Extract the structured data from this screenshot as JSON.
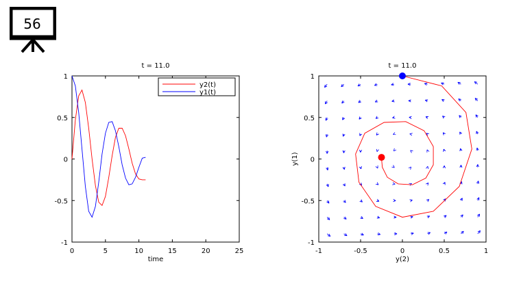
{
  "slide": {
    "number": "56",
    "icon": "presentation-board-icon"
  },
  "chart_data": [
    {
      "type": "line",
      "title": "t = 11.0",
      "xlabel": "time",
      "ylabel": "",
      "xlim": [
        0,
        25
      ],
      "ylim": [
        -1,
        1
      ],
      "xticks": [
        "0",
        "5",
        "10",
        "15",
        "20",
        "25"
      ],
      "yticks": [
        "1",
        "0.5",
        "0",
        "-0.5",
        "-1"
      ],
      "legend": {
        "placement": "top-right",
        "entries": [
          "y2(t)",
          "y1(t)"
        ]
      },
      "series": [
        {
          "name": "y2(t)",
          "color": "#ff0000",
          "x": [
            0,
            0.5,
            1,
            1.5,
            2,
            2.5,
            3,
            3.5,
            4,
            4.5,
            5,
            5.5,
            6,
            6.5,
            7,
            7.5,
            8,
            8.5,
            9,
            9.5,
            10,
            10.5,
            11
          ],
          "y": [
            0,
            0.47,
            0.76,
            0.83,
            0.68,
            0.37,
            0.0,
            -0.32,
            -0.52,
            -0.56,
            -0.45,
            -0.22,
            0.04,
            0.26,
            0.37,
            0.37,
            0.28,
            0.12,
            -0.05,
            -0.18,
            -0.24,
            -0.25,
            -0.25
          ]
        },
        {
          "name": "y1(t)",
          "color": "#0000ff",
          "x": [
            0,
            0.5,
            1,
            1.5,
            2,
            2.5,
            3,
            3.5,
            4,
            4.5,
            5,
            5.5,
            6,
            6.5,
            7,
            7.5,
            8,
            8.5,
            9,
            9.5,
            10,
            10.5,
            11
          ],
          "y": [
            1,
            0.88,
            0.56,
            0.12,
            -0.33,
            -0.63,
            -0.7,
            -0.57,
            -0.28,
            0.06,
            0.31,
            0.44,
            0.45,
            0.34,
            0.15,
            -0.07,
            -0.23,
            -0.31,
            -0.3,
            -0.22,
            -0.1,
            0.01,
            0.02
          ]
        }
      ]
    },
    {
      "type": "line",
      "title": "t = 11.0",
      "xlabel": "y(2)",
      "ylabel": "y(1)",
      "xlim": [
        -1,
        1
      ],
      "ylim": [
        -1,
        1
      ],
      "xticks": [
        "-1",
        "-0.5",
        "0",
        "0.5",
        "1"
      ],
      "yticks": [
        "1",
        "0.5",
        "0",
        "-0.5",
        "-1"
      ],
      "vector_field": {
        "color": "#0000ff",
        "grid": 10
      },
      "series": [
        {
          "name": "",
          "color": "#ff0000",
          "x": [
            0,
            0.47,
            0.76,
            0.83,
            0.68,
            0.37,
            0.0,
            -0.32,
            -0.52,
            -0.56,
            -0.45,
            -0.22,
            0.04,
            0.26,
            0.37,
            0.37,
            0.28,
            0.12,
            -0.05,
            -0.18,
            -0.24,
            -0.25,
            -0.25
          ],
          "y": [
            1,
            0.88,
            0.56,
            0.12,
            -0.33,
            -0.63,
            -0.7,
            -0.57,
            -0.28,
            0.06,
            0.31,
            0.44,
            0.45,
            0.34,
            0.15,
            -0.07,
            -0.23,
            -0.31,
            -0.3,
            -0.22,
            -0.1,
            0.01,
            0.02
          ]
        }
      ],
      "markers": [
        {
          "name": "start",
          "x": 0,
          "y": 1,
          "color": "#0000ff"
        },
        {
          "name": "current",
          "x": -0.25,
          "y": 0.02,
          "color": "#ff0000"
        }
      ]
    }
  ]
}
